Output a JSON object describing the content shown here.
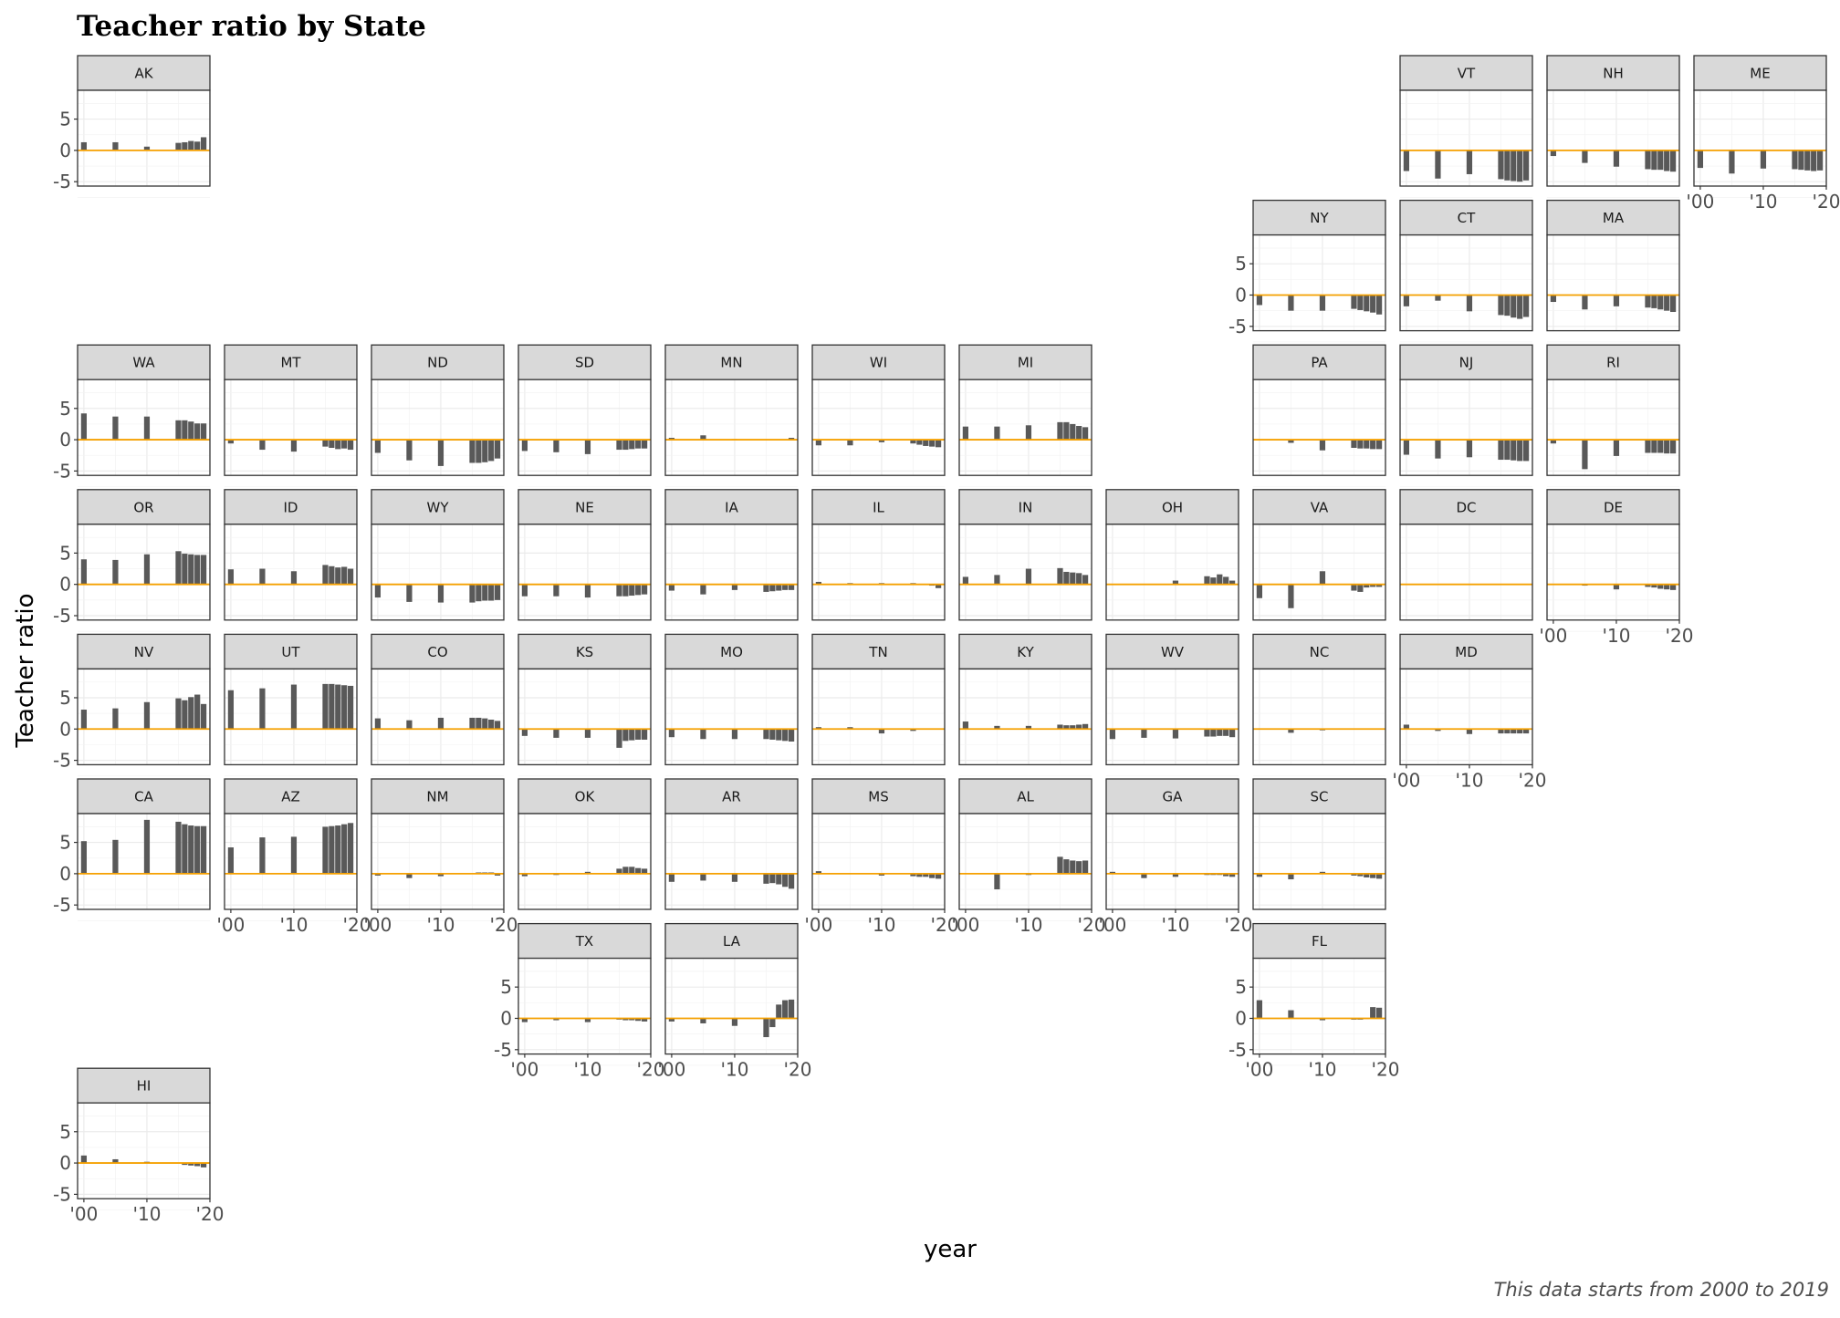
{
  "chart_data": {
    "type": "bar",
    "title": "Teacher ratio by State",
    "xlabel": "year",
    "ylabel": "Teacher ratio",
    "caption": "This data starts from 2000 to 2019",
    "years": [
      2000,
      2005,
      2010,
      2015,
      2016,
      2017,
      2018,
      2019
    ],
    "xlim": [
      1999,
      2020
    ],
    "ylim": [
      -5.7,
      9.6
    ],
    "x_ticks": [
      2000,
      2010,
      2020
    ],
    "x_tick_labels": [
      "'00",
      "'10",
      "'20"
    ],
    "y_ticks": [
      -5,
      0,
      5
    ],
    "y_tick_labels": [
      "-5",
      "0",
      "5"
    ],
    "grid": true,
    "reference_line": {
      "value": 0,
      "color": "#f5a000"
    },
    "bar_color": "#595959",
    "states": [
      {
        "name": "AK",
        "col": 0,
        "row": 0,
        "values": [
          1.3,
          1.3,
          0.6,
          1.2,
          1.3,
          1.5,
          1.4,
          2.1
        ],
        "x_axis": false,
        "y_axis": true
      },
      {
        "name": "VT",
        "col": 9,
        "row": 0,
        "values": [
          -3.3,
          -4.5,
          -3.8,
          -4.6,
          -4.8,
          -4.9,
          -5.0,
          -4.8
        ],
        "x_axis": false,
        "y_axis": false
      },
      {
        "name": "NH",
        "col": 10,
        "row": 0,
        "values": [
          -0.9,
          -2.0,
          -2.6,
          -3.0,
          -3.1,
          -3.1,
          -3.3,
          -3.4
        ],
        "x_axis": false,
        "y_axis": false
      },
      {
        "name": "ME",
        "col": 11,
        "row": 0,
        "values": [
          -2.8,
          -3.7,
          -2.9,
          -3.0,
          -3.1,
          -3.2,
          -3.3,
          -3.2
        ],
        "x_axis": true,
        "y_axis": false
      },
      {
        "name": "NY",
        "col": 8,
        "row": 1,
        "values": [
          -1.6,
          -2.5,
          -2.5,
          -2.2,
          -2.4,
          -2.6,
          -2.8,
          -3.1
        ],
        "x_axis": false,
        "y_axis": true
      },
      {
        "name": "CT",
        "col": 9,
        "row": 1,
        "values": [
          -1.8,
          -0.9,
          -2.6,
          -3.2,
          -3.3,
          -3.6,
          -3.8,
          -3.5
        ],
        "x_axis": false,
        "y_axis": false
      },
      {
        "name": "MA",
        "col": 10,
        "row": 1,
        "values": [
          -1.1,
          -2.3,
          -1.8,
          -2.0,
          -2.1,
          -2.3,
          -2.5,
          -2.7
        ],
        "x_axis": false,
        "y_axis": false
      },
      {
        "name": "WA",
        "col": 0,
        "row": 2,
        "values": [
          4.2,
          3.7,
          3.7,
          3.1,
          3.1,
          2.9,
          2.6,
          2.6
        ],
        "x_axis": false,
        "y_axis": true
      },
      {
        "name": "MT",
        "col": 1,
        "row": 2,
        "values": [
          -0.6,
          -1.6,
          -1.9,
          -1.1,
          -1.3,
          -1.5,
          -1.4,
          -1.6
        ],
        "x_axis": false,
        "y_axis": false
      },
      {
        "name": "ND",
        "col": 2,
        "row": 2,
        "values": [
          -2.1,
          -3.3,
          -4.2,
          -3.7,
          -3.7,
          -3.6,
          -3.4,
          -3.0
        ],
        "x_axis": false,
        "y_axis": false
      },
      {
        "name": "SD",
        "col": 3,
        "row": 2,
        "values": [
          -1.8,
          -2.0,
          -2.3,
          -1.6,
          -1.6,
          -1.5,
          -1.4,
          -1.4
        ],
        "x_axis": false,
        "y_axis": false
      },
      {
        "name": "MN",
        "col": 4,
        "row": 2,
        "values": [
          0.3,
          0.7,
          0.1,
          0.0,
          0.0,
          0.0,
          0.0,
          0.3
        ],
        "x_axis": false,
        "y_axis": false
      },
      {
        "name": "WI",
        "col": 5,
        "row": 2,
        "values": [
          -0.9,
          -0.9,
          -0.4,
          -0.6,
          -0.8,
          -1.0,
          -1.1,
          -1.2
        ],
        "x_axis": false,
        "y_axis": false
      },
      {
        "name": "MI",
        "col": 6,
        "row": 2,
        "values": [
          2.1,
          2.1,
          2.3,
          2.8,
          2.8,
          2.5,
          2.2,
          2.0
        ],
        "x_axis": false,
        "y_axis": false
      },
      {
        "name": "PA",
        "col": 8,
        "row": 2,
        "values": [
          0.0,
          -0.5,
          -1.7,
          -1.3,
          -1.4,
          -1.4,
          -1.5,
          -1.5
        ],
        "x_axis": false,
        "y_axis": false
      },
      {
        "name": "NJ",
        "col": 9,
        "row": 2,
        "values": [
          -2.4,
          -3.0,
          -2.8,
          -3.2,
          -3.2,
          -3.3,
          -3.4,
          -3.4
        ],
        "x_axis": false,
        "y_axis": false
      },
      {
        "name": "RI",
        "col": 10,
        "row": 2,
        "values": [
          -0.6,
          -4.7,
          -2.6,
          -2.1,
          -2.1,
          -2.1,
          -2.2,
          -2.2
        ],
        "x_axis": false,
        "y_axis": false
      },
      {
        "name": "OR",
        "col": 0,
        "row": 3,
        "values": [
          4.0,
          3.9,
          4.8,
          5.3,
          4.9,
          4.8,
          4.7,
          4.7
        ],
        "x_axis": false,
        "y_axis": true
      },
      {
        "name": "ID",
        "col": 1,
        "row": 3,
        "values": [
          2.4,
          2.5,
          2.1,
          3.1,
          2.9,
          2.7,
          2.8,
          2.5
        ],
        "x_axis": false,
        "y_axis": false
      },
      {
        "name": "WY",
        "col": 2,
        "row": 3,
        "values": [
          -2.1,
          -2.8,
          -2.9,
          -2.9,
          -2.7,
          -2.6,
          -2.6,
          -2.5
        ],
        "x_axis": false,
        "y_axis": false
      },
      {
        "name": "NE",
        "col": 3,
        "row": 3,
        "values": [
          -1.9,
          -1.9,
          -2.1,
          -1.9,
          -1.9,
          -1.8,
          -1.7,
          -1.6
        ],
        "x_axis": false,
        "y_axis": false
      },
      {
        "name": "IA",
        "col": 4,
        "row": 3,
        "values": [
          -1.0,
          -1.6,
          -0.9,
          -1.2,
          -1.1,
          -1.0,
          -0.9,
          -0.9
        ],
        "x_axis": false,
        "y_axis": false
      },
      {
        "name": "IL",
        "col": 5,
        "row": 3,
        "values": [
          0.4,
          0.2,
          0.2,
          0.2,
          0.1,
          0.1,
          -0.2,
          -0.6
        ],
        "x_axis": false,
        "y_axis": false
      },
      {
        "name": "IN",
        "col": 6,
        "row": 3,
        "values": [
          1.2,
          1.5,
          2.5,
          2.6,
          2.0,
          1.9,
          1.8,
          1.5
        ],
        "x_axis": false,
        "y_axis": false
      },
      {
        "name": "OH",
        "col": 7,
        "row": 3,
        "values": [
          0.0,
          0.0,
          0.6,
          1.3,
          1.1,
          1.6,
          1.2,
          0.6
        ],
        "x_axis": false,
        "y_axis": false
      },
      {
        "name": "VA",
        "col": 8,
        "row": 3,
        "values": [
          -2.2,
          -3.8,
          2.1,
          -1.0,
          -1.2,
          -0.5,
          -0.4,
          -0.4
        ],
        "x_axis": false,
        "y_axis": false
      },
      {
        "name": "DC",
        "col": 9,
        "row": 3,
        "values": [
          0.0,
          0.0,
          0.0,
          0.0,
          0.0,
          0.0,
          0.0,
          0.0
        ],
        "x_axis": false,
        "y_axis": false
      },
      {
        "name": "DE",
        "col": 10,
        "row": 3,
        "values": [
          0.0,
          -0.2,
          -0.8,
          -0.4,
          -0.5,
          -0.7,
          -0.8,
          -0.9
        ],
        "x_axis": true,
        "y_axis": false
      },
      {
        "name": "NV",
        "col": 0,
        "row": 4,
        "values": [
          3.1,
          3.3,
          4.3,
          4.9,
          4.6,
          5.1,
          5.5,
          4.0
        ],
        "x_axis": false,
        "y_axis": true
      },
      {
        "name": "UT",
        "col": 1,
        "row": 4,
        "values": [
          6.2,
          6.5,
          7.1,
          7.2,
          7.2,
          7.1,
          7.0,
          6.9
        ],
        "x_axis": false,
        "y_axis": false
      },
      {
        "name": "CO",
        "col": 2,
        "row": 4,
        "values": [
          1.7,
          1.4,
          1.8,
          1.8,
          1.8,
          1.7,
          1.5,
          1.3
        ],
        "x_axis": false,
        "y_axis": false
      },
      {
        "name": "KS",
        "col": 3,
        "row": 4,
        "values": [
          -1.1,
          -1.4,
          -1.4,
          -3.0,
          -1.9,
          -1.8,
          -1.7,
          -1.7
        ],
        "x_axis": false,
        "y_axis": false
      },
      {
        "name": "MO",
        "col": 4,
        "row": 4,
        "values": [
          -1.3,
          -1.6,
          -1.6,
          -1.6,
          -1.7,
          -1.8,
          -1.9,
          -2.0
        ],
        "x_axis": false,
        "y_axis": false
      },
      {
        "name": "TN",
        "col": 5,
        "row": 4,
        "values": [
          0.3,
          0.3,
          -0.7,
          -0.3,
          0.0,
          0.0,
          0.0,
          0.0
        ],
        "x_axis": false,
        "y_axis": false
      },
      {
        "name": "KY",
        "col": 6,
        "row": 4,
        "values": [
          1.2,
          0.5,
          0.5,
          0.7,
          0.6,
          0.6,
          0.7,
          0.8
        ],
        "x_axis": false,
        "y_axis": false
      },
      {
        "name": "WV",
        "col": 7,
        "row": 4,
        "values": [
          -1.6,
          -1.4,
          -1.5,
          -1.2,
          -1.2,
          -1.1,
          -1.1,
          -1.3
        ],
        "x_axis": false,
        "y_axis": false
      },
      {
        "name": "NC",
        "col": 8,
        "row": 4,
        "values": [
          0.0,
          -0.6,
          -0.2,
          0.0,
          0.0,
          0.0,
          0.0,
          0.0
        ],
        "x_axis": false,
        "y_axis": false
      },
      {
        "name": "MD",
        "col": 9,
        "row": 4,
        "values": [
          0.7,
          -0.3,
          -0.8,
          -0.7,
          -0.7,
          -0.7,
          -0.7,
          -0.7
        ],
        "x_axis": true,
        "y_axis": false
      },
      {
        "name": "CA",
        "col": 0,
        "row": 5,
        "values": [
          5.2,
          5.4,
          8.6,
          8.3,
          7.9,
          7.7,
          7.6,
          7.6
        ],
        "x_axis": false,
        "y_axis": true
      },
      {
        "name": "AZ",
        "col": 1,
        "row": 5,
        "values": [
          4.2,
          5.8,
          5.9,
          7.5,
          7.6,
          7.7,
          7.9,
          8.1
        ],
        "x_axis": true,
        "y_axis": false
      },
      {
        "name": "NM",
        "col": 2,
        "row": 5,
        "values": [
          -0.3,
          -0.7,
          -0.4,
          0.0,
          0.2,
          0.2,
          0.2,
          -0.3
        ],
        "x_axis": true,
        "y_axis": false
      },
      {
        "name": "OK",
        "col": 3,
        "row": 5,
        "values": [
          -0.4,
          -0.2,
          0.3,
          0.8,
          1.1,
          1.1,
          0.9,
          0.8
        ],
        "x_axis": false,
        "y_axis": false
      },
      {
        "name": "AR",
        "col": 4,
        "row": 5,
        "values": [
          -1.3,
          -1.1,
          -1.3,
          -1.6,
          -1.5,
          -1.7,
          -2.1,
          -2.4
        ],
        "x_axis": false,
        "y_axis": false
      },
      {
        "name": "MS",
        "col": 5,
        "row": 5,
        "values": [
          0.4,
          0.0,
          -0.3,
          -0.4,
          -0.5,
          -0.5,
          -0.7,
          -0.8
        ],
        "x_axis": true,
        "y_axis": false
      },
      {
        "name": "AL",
        "col": 6,
        "row": 5,
        "values": [
          0.0,
          -2.5,
          -0.2,
          2.7,
          2.3,
          2.1,
          2.0,
          2.1
        ],
        "x_axis": true,
        "y_axis": false
      },
      {
        "name": "GA",
        "col": 7,
        "row": 5,
        "values": [
          0.3,
          -0.7,
          -0.5,
          -0.2,
          -0.2,
          -0.2,
          -0.4,
          -0.5
        ],
        "x_axis": true,
        "y_axis": false
      },
      {
        "name": "SC",
        "col": 8,
        "row": 5,
        "values": [
          -0.5,
          -0.9,
          0.3,
          -0.3,
          -0.4,
          -0.6,
          -0.7,
          -0.8
        ],
        "x_axis": false,
        "y_axis": false
      },
      {
        "name": "TX",
        "col": 3,
        "row": 6,
        "values": [
          -0.6,
          -0.3,
          -0.6,
          -0.2,
          -0.3,
          -0.3,
          -0.4,
          -0.5
        ],
        "x_axis": true,
        "y_axis": true
      },
      {
        "name": "LA",
        "col": 4,
        "row": 6,
        "values": [
          -0.5,
          -0.8,
          -1.2,
          -3.0,
          -1.4,
          2.2,
          2.9,
          3.0
        ],
        "x_axis": true,
        "y_axis": false
      },
      {
        "name": "FL",
        "col": 8,
        "row": 6,
        "values": [
          2.9,
          1.3,
          -0.3,
          -0.2,
          -0.2,
          -0.1,
          1.8,
          1.7
        ],
        "x_axis": true,
        "y_axis": true
      },
      {
        "name": "HI",
        "col": 0,
        "row": 7,
        "values": [
          1.2,
          0.6,
          0.2,
          0.0,
          -0.3,
          -0.4,
          -0.5,
          -0.7
        ],
        "x_axis": true,
        "y_axis": true
      }
    ]
  }
}
